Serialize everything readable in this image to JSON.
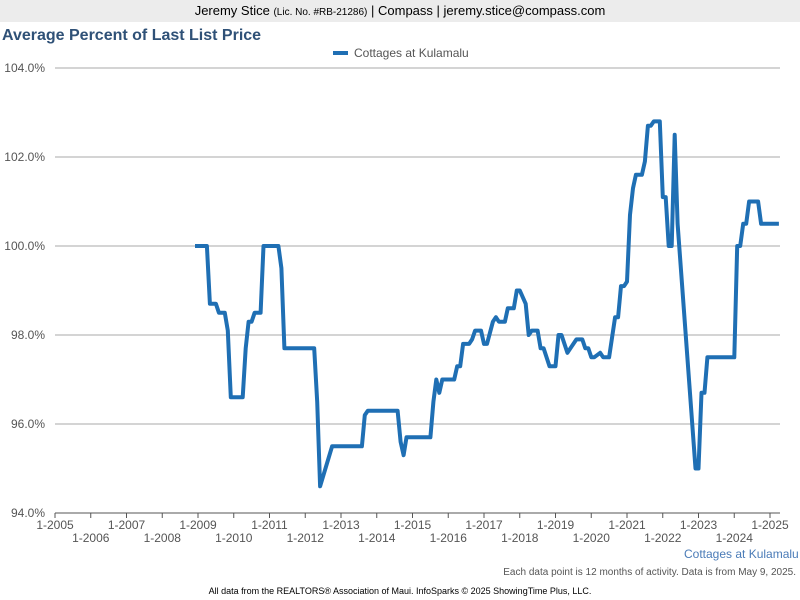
{
  "header": {
    "name": "Jeremy Stice",
    "license": "(Lic. No. #RB-21286)",
    "company": "| Compass | jeremy.stice@compass.com"
  },
  "chart_data": {
    "type": "line",
    "title": "Average Percent of Last List Price",
    "x": [
      "12-2008",
      "4-2009",
      "5-2009",
      "7-2009",
      "8-2009",
      "10-2009",
      "11-2009",
      "12-2009",
      "4-2010",
      "5-2010",
      "6-2010",
      "7-2010",
      "8-2010",
      "10-2010",
      "11-2010",
      "4-2011",
      "5-2011",
      "6-2011",
      "4-2012",
      "5-2012",
      "6-2012",
      "10-2012",
      "8-2013",
      "9-2013",
      "10-2013",
      "8-2014",
      "9-2014",
      "10-2014",
      "11-2014",
      "7-2015",
      "8-2015",
      "9-2015",
      "10-2015",
      "11-2015",
      "3-2016",
      "4-2016",
      "5-2016",
      "6-2016",
      "8-2016",
      "9-2016",
      "10-2016",
      "12-2016",
      "1-2017",
      "2-2017",
      "4-2017",
      "5-2017",
      "6-2017",
      "8-2017",
      "9-2017",
      "11-2017",
      "12-2017",
      "1-2018",
      "3-2018",
      "4-2018",
      "5-2018",
      "7-2018",
      "8-2018",
      "9-2018",
      "11-2018",
      "1-2019",
      "2-2019",
      "3-2019",
      "5-2019",
      "6-2019",
      "8-2019",
      "10-2019",
      "11-2019",
      "12-2019",
      "1-2020",
      "2-2020",
      "4-2020",
      "5-2020",
      "7-2020",
      "9-2020",
      "10-2020",
      "11-2020",
      "12-2020",
      "1-2021",
      "2-2021",
      "3-2021",
      "4-2021",
      "6-2021",
      "7-2021",
      "8-2021",
      "9-2021",
      "10-2021",
      "12-2021",
      "1-2022",
      "2-2022",
      "3-2022",
      "4-2022",
      "5-2022",
      "6-2022",
      "12-2022",
      "1-2023",
      "2-2023",
      "3-2023",
      "4-2023",
      "1-2024",
      "2-2024",
      "3-2024",
      "4-2024",
      "5-2024",
      "6-2024",
      "9-2024",
      "10-2024",
      "4-2025"
    ],
    "series": [
      {
        "name": "Cottages at Kulamalu",
        "color": "#1f6fb4",
        "values": [
          100.0,
          100.0,
          98.7,
          98.7,
          98.5,
          98.5,
          98.1,
          96.6,
          96.6,
          97.7,
          98.3,
          98.3,
          98.5,
          98.5,
          100.0,
          100.0,
          99.5,
          97.7,
          97.7,
          96.5,
          94.6,
          95.5,
          95.5,
          96.2,
          96.3,
          96.3,
          95.6,
          95.3,
          95.7,
          95.7,
          96.5,
          97.0,
          96.7,
          97.0,
          97.0,
          97.3,
          97.3,
          97.8,
          97.8,
          97.9,
          98.1,
          98.1,
          97.8,
          97.8,
          98.3,
          98.4,
          98.3,
          98.3,
          98.6,
          98.6,
          99.0,
          99.0,
          98.7,
          98.0,
          98.1,
          98.1,
          97.7,
          97.7,
          97.3,
          97.3,
          98.0,
          98.0,
          97.6,
          97.7,
          97.9,
          97.9,
          97.7,
          97.7,
          97.5,
          97.5,
          97.6,
          97.5,
          97.5,
          98.4,
          98.4,
          99.1,
          99.1,
          99.2,
          100.7,
          101.3,
          101.6,
          101.6,
          101.9,
          102.7,
          102.7,
          102.8,
          102.8,
          101.1,
          101.1,
          100.0,
          100.0,
          102.5,
          100.5,
          95.0,
          95.0,
          96.7,
          96.7,
          97.5,
          97.5,
          100.0,
          100.0,
          100.5,
          100.5,
          101.0,
          101.0,
          100.5,
          100.5
        ]
      }
    ],
    "xlim": [
      "1-2005",
      "1-2025"
    ],
    "xticks": [
      "1-2005",
      "1-2006",
      "1-2007",
      "1-2008",
      "1-2009",
      "1-2010",
      "1-2011",
      "1-2012",
      "1-2013",
      "1-2014",
      "1-2015",
      "1-2016",
      "1-2017",
      "1-2018",
      "1-2019",
      "1-2020",
      "1-2021",
      "1-2022",
      "1-2023",
      "1-2024",
      "1-2025"
    ],
    "ylim": [
      94,
      104
    ],
    "yticks": [
      {
        "value": 94,
        "label": "94.0%"
      },
      {
        "value": 96,
        "label": "96.0%"
      },
      {
        "value": 98,
        "label": "98.0%"
      },
      {
        "value": 100,
        "label": "100.0%"
      },
      {
        "value": 102,
        "label": "102.0%"
      },
      {
        "value": 104,
        "label": "104.0%"
      }
    ],
    "grid": true,
    "legend": "top",
    "footer_label": "Cottages at Kulamalu",
    "note": "Each data point is 12 months of activity. Data is from May 9, 2025."
  },
  "footer": "All data from the REALTORS® Association of Maui. InfoSparks © 2025 ShowingTime Plus, LLC."
}
